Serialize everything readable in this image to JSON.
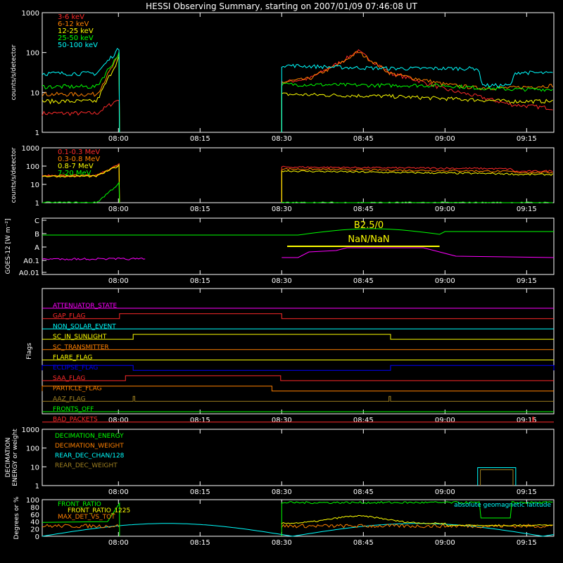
{
  "title": "HESSI Observing Summary, starting on 2007/01/09 07:46:08 UT",
  "time_ticks": [
    "08:00",
    "08:15",
    "08:30",
    "08:45",
    "09:00",
    "09:15"
  ],
  "chart_data": [
    {
      "type": "line",
      "panel": "lightcurve",
      "ylabel": "counts/s/detector",
      "ylog": true,
      "ylim": [
        1,
        1000
      ],
      "ytick_labels": [
        "1",
        "10",
        "100",
        "1000"
      ],
      "xlim_minutes": [
        -14,
        40
      ],
      "gap": [
        0.2,
        30
      ],
      "series": [
        {
          "name": "3-6 keV",
          "color": "#ff2a2a",
          "pre": [
            3,
            7
          ],
          "post": [
            [
              30,
              18
            ],
            [
              35,
              22
            ],
            [
              41,
              60
            ],
            [
              44,
              110
            ],
            [
              50,
              30
            ],
            [
              55,
              20
            ],
            [
              60,
              12
            ],
            [
              66,
              8
            ],
            [
              72,
              5
            ],
            [
              80,
              4
            ]
          ]
        },
        {
          "name": "6-12 keV",
          "color": "#ff8000",
          "pre": [
            9,
            90
          ],
          "post": [
            [
              30,
              18
            ],
            [
              35,
              22
            ],
            [
              41,
              55
            ],
            [
              44,
              105
            ],
            [
              50,
              30
            ],
            [
              55,
              22
            ],
            [
              60,
              16
            ],
            [
              66,
              13
            ],
            [
              72,
              13
            ],
            [
              80,
              15
            ]
          ]
        },
        {
          "name": "12-25 keV",
          "color": "#ffff00",
          "pre": [
            6,
            80
          ],
          "post": [
            [
              30,
              9
            ],
            [
              40,
              8.5
            ],
            [
              50,
              8
            ],
            [
              60,
              7
            ],
            [
              66,
              6.5
            ],
            [
              72,
              6
            ],
            [
              80,
              6
            ]
          ]
        },
        {
          "name": "25-50 keV",
          "color": "#00ff00",
          "pre": [
            14,
            100
          ],
          "post": [
            [
              30,
              16
            ],
            [
              50,
              15
            ],
            [
              60,
              15
            ],
            [
              66,
              13
            ],
            [
              72,
              12
            ],
            [
              80,
              12
            ]
          ]
        },
        {
          "name": "50-100 keV",
          "color": "#00ffff",
          "pre": [
            30,
            130
          ],
          "post": [
            [
              30,
              48
            ],
            [
              40,
              43
            ],
            [
              50,
              40
            ],
            [
              66,
              40
            ],
            [
              67,
              15
            ],
            [
              72,
              15
            ],
            [
              73,
              32
            ],
            [
              80,
              30
            ]
          ]
        }
      ]
    },
    {
      "type": "line",
      "panel": "high-energy",
      "ylabel": "counts/s/detector",
      "ylog": true,
      "ylim": [
        1,
        1000
      ],
      "ytick_labels": [
        "1",
        "10",
        "100",
        "1000"
      ],
      "series": [
        {
          "name": "0.1-0.3 MeV",
          "color": "#ff2a2a",
          "pre": [
            30,
            130
          ],
          "post": [
            [
              30,
              90
            ],
            [
              50,
              80
            ],
            [
              65,
              75
            ],
            [
              72,
              70
            ],
            [
              73,
              50
            ],
            [
              80,
              55
            ]
          ]
        },
        {
          "name": "0.3-0.8 MeV",
          "color": "#ff8000",
          "pre": [
            30,
            120
          ],
          "post": [
            [
              30,
              70
            ],
            [
              50,
              60
            ],
            [
              65,
              55
            ],
            [
              72,
              50
            ],
            [
              73,
              45
            ],
            [
              80,
              45
            ]
          ]
        },
        {
          "name": "0.8-7 MeV",
          "color": "#ffff00",
          "pre": [
            28,
            110
          ],
          "post": [
            [
              30,
              55
            ],
            [
              50,
              45
            ],
            [
              65,
              40
            ],
            [
              72,
              38
            ],
            [
              73,
              35
            ],
            [
              80,
              35
            ]
          ]
        },
        {
          "name": "7-20 MeV",
          "color": "#00ff00",
          "pre": [
            1,
            12
          ],
          "post": [
            [
              30,
              1
            ],
            [
              80,
              1
            ]
          ]
        }
      ]
    },
    {
      "type": "line",
      "panel": "goes",
      "ylabel": "GOES-12 [W m⁻²]",
      "ytick_labels": [
        "C",
        "B",
        "A",
        "A0.1",
        "A0.01"
      ],
      "annotations": [
        "B2.5/0",
        "NaN/NaN"
      ],
      "series": [
        {
          "name": "GOES long",
          "color": "#00ff00"
        },
        {
          "name": "GOES short",
          "color": "#ff00ff"
        }
      ]
    },
    {
      "type": "table",
      "panel": "flags",
      "ylabel": "Flags",
      "flags": [
        {
          "name": "ATTENUATOR_STATE",
          "color": "#ff00ff",
          "on": []
        },
        {
          "name": "GAP_FLAG",
          "color": "#ff2a2a",
          "on": [
            [
              0.2,
              30
            ]
          ]
        },
        {
          "name": "NON_SOLAR_EVENT",
          "color": "#00ffff",
          "on": []
        },
        {
          "name": "SC_IN_SUNLIGHT",
          "color": "#ffff00",
          "on": [
            [
              2.7,
              50
            ]
          ]
        },
        {
          "name": "SC_TRANSMITTER",
          "color": "#ff8000",
          "on": []
        },
        {
          "name": "FLARE_FLAG",
          "color": "#ffff00",
          "on": []
        },
        {
          "name": "ECLIPSE_FLAG",
          "color": "#0000ff",
          "on": [
            [
              -14,
              2.7
            ],
            [
              50,
              80
            ]
          ]
        },
        {
          "name": "SAA_FLAG",
          "color": "#ff2a2a",
          "on": [
            [
              1.3,
              29.8
            ]
          ]
        },
        {
          "name": "PARTICLE_FLAG",
          "color": "#ff8000",
          "on": [
            [
              -14,
              28.2
            ]
          ]
        },
        {
          "name": "AAZ_FLAG",
          "color": "#a08020",
          "on": [
            [
              2.7,
              3
            ],
            [
              49.7,
              50
            ]
          ]
        },
        {
          "name": "FRONTS_OFF",
          "color": "#00ff00",
          "on": []
        },
        {
          "name": "BAD_PACKETS",
          "color": "#ff2a2a",
          "on": [
            [
              76.1,
              76.3
            ]
          ]
        }
      ]
    },
    {
      "type": "line",
      "panel": "decimation",
      "ylabel": "DECIMATION ENERGY or weight",
      "ylog": true,
      "ylim": [
        1,
        1000
      ],
      "ytick_labels": [
        "1",
        "10",
        "100",
        "1000"
      ],
      "series": [
        {
          "name": "DECIMATION_ENERGY",
          "color": "#00ff00"
        },
        {
          "name": "DECIMATION_WEIGHT",
          "color": "#ff8000"
        },
        {
          "name": "REAR_DEC_CHAN/128",
          "color": "#00ffff"
        },
        {
          "name": "REAR_DEC_WEIGHT",
          "color": "#a08020"
        }
      ]
    },
    {
      "type": "line",
      "panel": "ratios",
      "ylabel": "Degrees or %",
      "ylim": [
        0,
        100
      ],
      "ytick_labels": [
        "0",
        "20",
        "40",
        "60",
        "80",
        "100"
      ],
      "annotations": [
        "absolute geomagnetic latitude"
      ],
      "series": [
        {
          "name": "FRONT_RATIO",
          "color": "#00ff00"
        },
        {
          "name": "FRONT_RATIO_1225",
          "color": "#ffff00"
        },
        {
          "name": "MAX_DET_VS_TOT",
          "color": "#ff8000"
        }
      ]
    }
  ]
}
